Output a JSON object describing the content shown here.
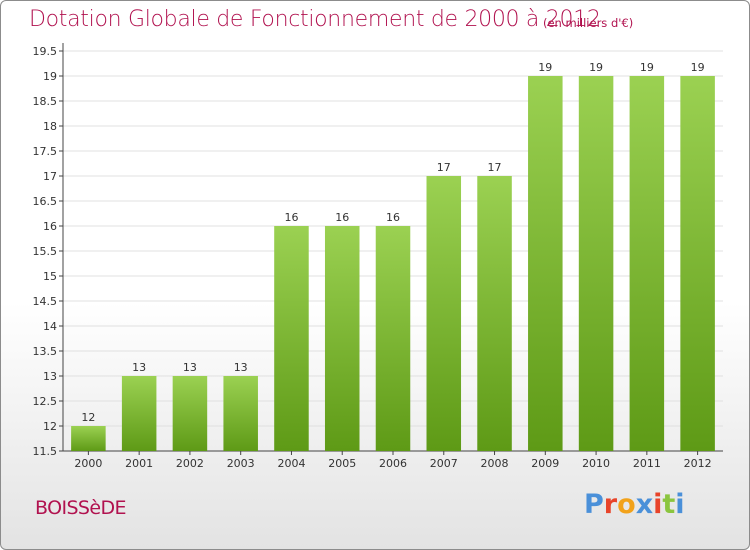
{
  "title": "Dotation Globale de Fonctionnement de 2000 à 2012",
  "subtitle": "(en milliers d'€)",
  "commune": "BOISSèDE",
  "brand": {
    "text": "Proxiti",
    "letters": [
      {
        "char": "P",
        "color": "#4a90d9"
      },
      {
        "char": "r",
        "color": "#e8442a"
      },
      {
        "char": "o",
        "color": "#f2a21a"
      },
      {
        "char": "x",
        "color": "#4a90d9"
      },
      {
        "char": "i",
        "color": "#e8442a"
      },
      {
        "char": "t",
        "color": "#8bc53f"
      },
      {
        "char": "i",
        "color": "#4a90d9"
      }
    ]
  },
  "colors": {
    "title": "#b1124f",
    "bar_top": "#9bd152",
    "bar_bottom": "#5e9a16",
    "grid": "#e0e0e0",
    "axis": "#444444"
  },
  "chart_data": {
    "type": "bar",
    "title": "Dotation Globale de Fonctionnement de 2000 à 2012",
    "subtitle": "(en milliers d'€)",
    "xlabel": "",
    "ylabel": "",
    "categories": [
      "2000",
      "2001",
      "2002",
      "2003",
      "2004",
      "2005",
      "2006",
      "2007",
      "2008",
      "2009",
      "2010",
      "2011",
      "2012"
    ],
    "values": [
      12,
      13,
      13,
      13,
      16,
      16,
      16,
      17,
      17,
      19,
      19,
      19,
      19
    ],
    "ylim": [
      11.5,
      19.5
    ],
    "yticks": [
      "11.5",
      "12",
      "12.5",
      "13",
      "13.5",
      "14",
      "14.5",
      "15",
      "15.5",
      "16",
      "16.5",
      "17",
      "17.5",
      "18",
      "18.5",
      "19",
      "19.5"
    ],
    "grid": true,
    "legend": "none"
  }
}
